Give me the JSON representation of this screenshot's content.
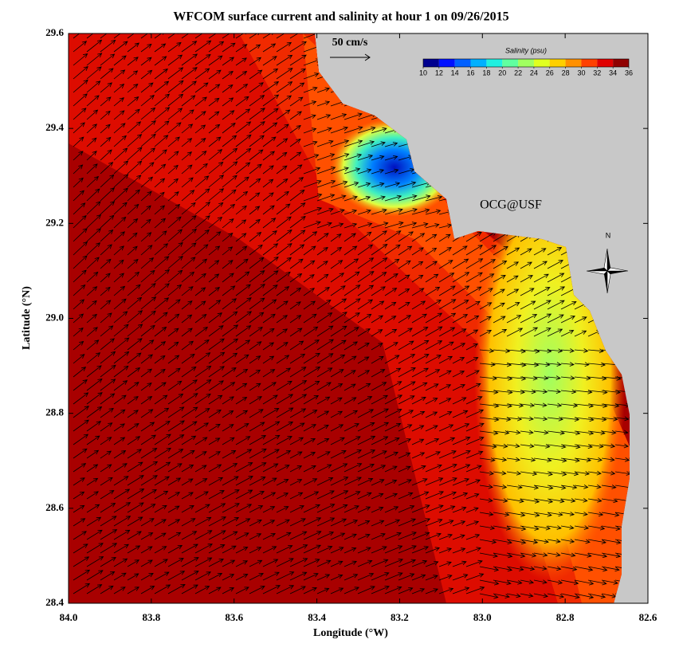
{
  "chart_data": {
    "type": "map",
    "title": "WFCOM surface current and salinity at hour 1 on 09/26/2015",
    "x_label": "Longitude (°W)",
    "y_label": "Latitude (°N)",
    "xlim": [
      84.0,
      82.6
    ],
    "ylim": [
      28.4,
      29.6
    ],
    "xticks": [
      {
        "value": 84.0,
        "label": "84.0"
      },
      {
        "value": 83.8,
        "label": "83.8"
      },
      {
        "value": 83.6,
        "label": "83.6"
      },
      {
        "value": 83.4,
        "label": "83.4"
      },
      {
        "value": 83.2,
        "label": "83.2"
      },
      {
        "value": 83.0,
        "label": "83.0"
      },
      {
        "value": 82.8,
        "label": "82.8"
      },
      {
        "value": 82.6,
        "label": "82.6"
      }
    ],
    "yticks": [
      {
        "value": 28.4,
        "label": "28.4"
      },
      {
        "value": 28.6,
        "label": "28.6"
      },
      {
        "value": 28.8,
        "label": "28.8"
      },
      {
        "value": 29.0,
        "label": "29.0"
      },
      {
        "value": 29.2,
        "label": "29.2"
      },
      {
        "value": 29.4,
        "label": "29.4"
      },
      {
        "value": 29.6,
        "label": "29.6"
      }
    ],
    "colorbar": {
      "label": "Salinity (psu)",
      "lim": [
        10,
        36
      ],
      "ticks": [
        10,
        12,
        14,
        16,
        18,
        20,
        22,
        24,
        26,
        28,
        30,
        32,
        34,
        36
      ],
      "colors": [
        "#00008f",
        "#0010ff",
        "#0060ff",
        "#00b0ff",
        "#20f0e0",
        "#60ffa0",
        "#a0ff60",
        "#e0ff20",
        "#ffd000",
        "#ff9000",
        "#ff4000",
        "#e00000",
        "#900000"
      ]
    },
    "scale_arrow_label": "50 cm/s",
    "annotation": "OCG@USF",
    "compass_label": "N"
  }
}
